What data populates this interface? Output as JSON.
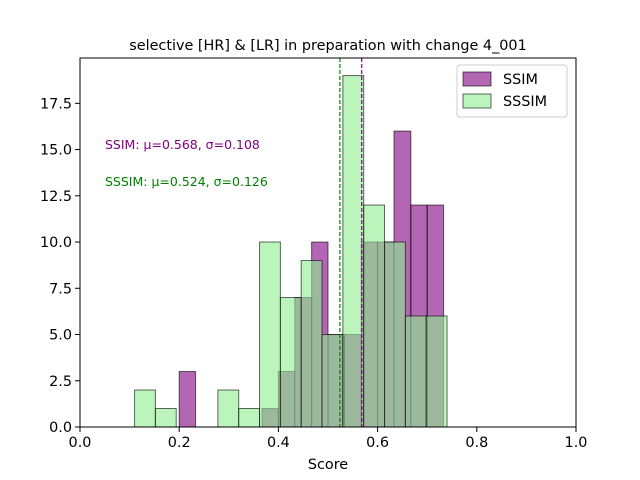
{
  "chart_data": {
    "type": "bar",
    "title": "selective [HR] & [LR] in preparation with change 4_001",
    "xlabel": "Score",
    "ylabel": "",
    "xlim": [
      0.0,
      1.0
    ],
    "ylim": [
      0.0,
      19.95
    ],
    "xticks": [
      "0.0",
      "0.2",
      "0.4",
      "0.6",
      "0.8",
      "1.0"
    ],
    "yticks": [
      "0.0",
      "2.5",
      "5.0",
      "7.5",
      "10.0",
      "12.5",
      "15.0",
      "17.5"
    ],
    "grid": false,
    "legend_position": "top-right",
    "series": [
      {
        "name": "SSIM",
        "color": "#800080",
        "bins": [
          {
            "x0": 0.2,
            "x1": 0.233,
            "count": 3
          },
          {
            "x0": 0.333,
            "x1": 0.367,
            "count": 0
          },
          {
            "x0": 0.367,
            "x1": 0.4,
            "count": 1
          },
          {
            "x0": 0.4,
            "x1": 0.433,
            "count": 3
          },
          {
            "x0": 0.433,
            "x1": 0.467,
            "count": 7
          },
          {
            "x0": 0.467,
            "x1": 0.5,
            "count": 10
          },
          {
            "x0": 0.5,
            "x1": 0.533,
            "count": 5
          },
          {
            "x0": 0.533,
            "x1": 0.567,
            "count": 5
          },
          {
            "x0": 0.567,
            "x1": 0.6,
            "count": 10
          },
          {
            "x0": 0.6,
            "x1": 0.633,
            "count": 10
          },
          {
            "x0": 0.633,
            "x1": 0.667,
            "count": 16
          },
          {
            "x0": 0.667,
            "x1": 0.7,
            "count": 12
          },
          {
            "x0": 0.7,
            "x1": 0.733,
            "count": 12
          }
        ],
        "mean_line": 0.568,
        "stats_label": "SSIM: μ=0.568, σ=0.108"
      },
      {
        "name": "SSSIM",
        "color": "#90ee90",
        "bins": [
          {
            "x0": 0.11,
            "x1": 0.152,
            "count": 2
          },
          {
            "x0": 0.152,
            "x1": 0.194,
            "count": 1
          },
          {
            "x0": 0.278,
            "x1": 0.32,
            "count": 2
          },
          {
            "x0": 0.32,
            "x1": 0.362,
            "count": 1
          },
          {
            "x0": 0.362,
            "x1": 0.404,
            "count": 10
          },
          {
            "x0": 0.404,
            "x1": 0.446,
            "count": 7
          },
          {
            "x0": 0.446,
            "x1": 0.488,
            "count": 9
          },
          {
            "x0": 0.488,
            "x1": 0.53,
            "count": 5
          },
          {
            "x0": 0.53,
            "x1": 0.572,
            "count": 19
          },
          {
            "x0": 0.572,
            "x1": 0.614,
            "count": 12
          },
          {
            "x0": 0.614,
            "x1": 0.656,
            "count": 10
          },
          {
            "x0": 0.656,
            "x1": 0.698,
            "count": 6
          },
          {
            "x0": 0.698,
            "x1": 0.74,
            "count": 6
          }
        ],
        "mean_line": 0.524,
        "stats_label": "SSSIM: μ=0.524, σ=0.126"
      }
    ]
  }
}
